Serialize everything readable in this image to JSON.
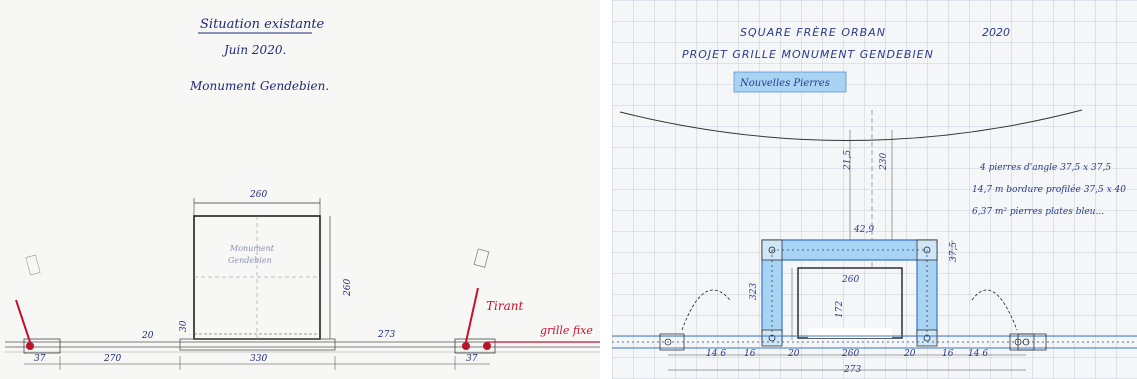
{
  "left_sheet": {
    "title": "Situation existante",
    "date": "Juin 2020.",
    "subject": "Monument Gendebien.",
    "box_label_1": "Monument",
    "box_label_2": "Gendebien",
    "dims": {
      "top_width": "260",
      "side_height": "260",
      "small_20": "20",
      "small_30": "30",
      "bottom_330": "330",
      "left_270": "270",
      "right_273": "273",
      "left_37": "37",
      "right_37": "37"
    },
    "label_tirant": "Tirant",
    "label_grille": "grille fixe"
  },
  "right_sheet": {
    "title_line1": "SQUARE   FRÈRE   ORBAN",
    "year": "2020",
    "title_line2": "PROJET   GRILLE   MONUMENT   GENDEBIEN",
    "badge": "Nouvelles Pierres",
    "notes": [
      "4 pierres d'angle 37,5 x 37,5",
      "14,7 m bordure profilée 37,5 x 40",
      "6,37 m² pierres plates bleu..."
    ],
    "dims": {
      "d215": "21,5",
      "d230": "230",
      "d429": "42,9",
      "d375": "37,5",
      "d260": "260",
      "d323": "323",
      "d172": "172",
      "b146L": "14 6",
      "b146R": "14 6",
      "b16L": "16",
      "b16R": "16",
      "b20L": "20",
      "b20R": "20",
      "b260": "260",
      "b273": "273"
    }
  },
  "colors": {
    "ink": "#1f2a78",
    "red": "#c8102e",
    "blue_fill": "#8fc3ea",
    "blue_line": "#3a78c8"
  }
}
